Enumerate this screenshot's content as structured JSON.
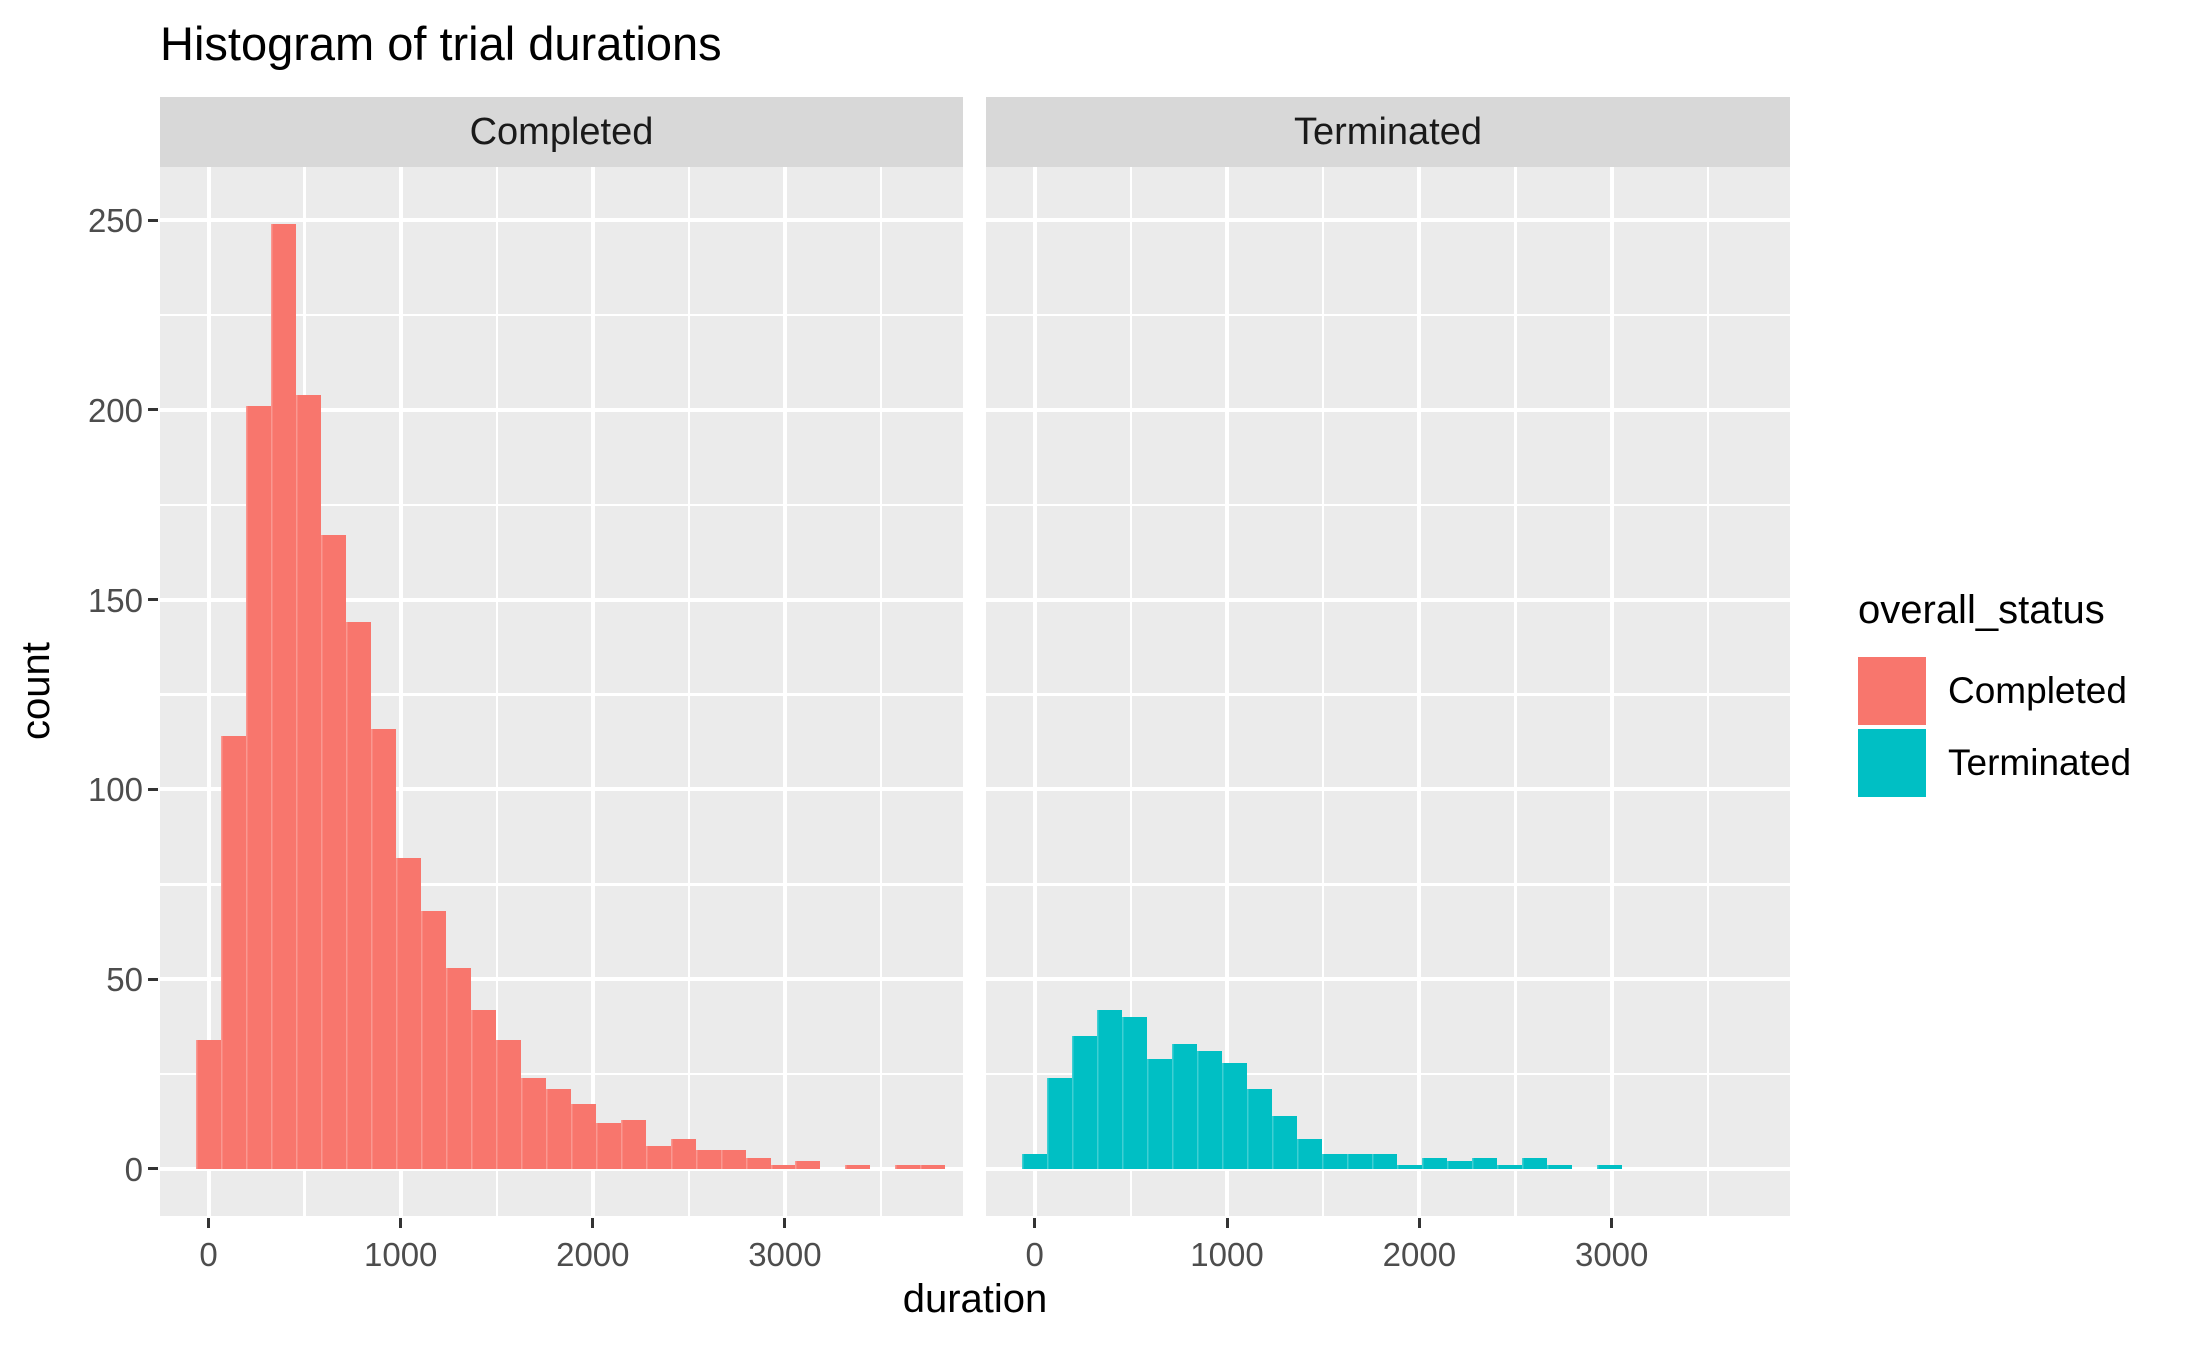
{
  "title": "Histogram of trial durations",
  "facets": [
    {
      "label": "Completed"
    },
    {
      "label": "Terminated"
    }
  ],
  "axes": {
    "x_title": "duration",
    "y_title": "count",
    "x_tick_labels": [
      "0",
      "1000",
      "2000",
      "3000"
    ],
    "x_tick_values": [
      0,
      1000,
      2000,
      3000
    ],
    "y_tick_labels": [
      "0",
      "50",
      "100",
      "150",
      "200",
      "250"
    ],
    "y_tick_values": [
      0,
      50,
      100,
      150,
      200,
      250
    ]
  },
  "legend": {
    "title": "overall_status",
    "items": [
      {
        "label": "Completed",
        "color": "#F8766D"
      },
      {
        "label": "Terminated",
        "color": "#00BFC4"
      }
    ]
  },
  "colors": {
    "completed_fill": "#F8766D",
    "terminated_fill": "#00BFC4",
    "panel_background": "#EBEBEB",
    "strip_background": "#D8D8D8",
    "gridline": "#FFFFFF",
    "tick_text": "#4D4D4D",
    "tick_mark": "#333333"
  },
  "chart_data": {
    "type": "bar",
    "subtype": "histogram",
    "title": "Histogram of trial durations",
    "xlabel": "duration",
    "ylabel": "count",
    "facet_variable": "overall_status",
    "legend_position": "right",
    "grid": true,
    "bin_width": 130,
    "first_bin_start": -65,
    "x_domain": [
      -253,
      3927
    ],
    "y_domain": [
      -12.4,
      264
    ],
    "x_major_gridlines": [
      0,
      1000,
      2000,
      3000
    ],
    "x_minor_gridlines": [
      500,
      1500,
      2500,
      3500
    ],
    "y_major_gridlines": [
      0,
      50,
      100,
      150,
      200,
      250
    ],
    "y_minor_gridlines": [
      25,
      75,
      125,
      175,
      225
    ],
    "series": [
      {
        "name": "Completed",
        "fill": "#F8766D",
        "counts": [
          34,
          114,
          201,
          249,
          204,
          167,
          144,
          116,
          82,
          68,
          53,
          42,
          34,
          24,
          21,
          17,
          12,
          13,
          6,
          8,
          5,
          5,
          3,
          1,
          2,
          0,
          1,
          0,
          1,
          1
        ]
      },
      {
        "name": "Terminated",
        "fill": "#00BFC4",
        "counts": [
          4,
          24,
          35,
          42,
          40,
          29,
          33,
          31,
          28,
          21,
          14,
          8,
          4,
          4,
          4,
          1,
          3,
          2,
          3,
          1,
          3,
          1,
          0,
          1
        ]
      }
    ]
  }
}
